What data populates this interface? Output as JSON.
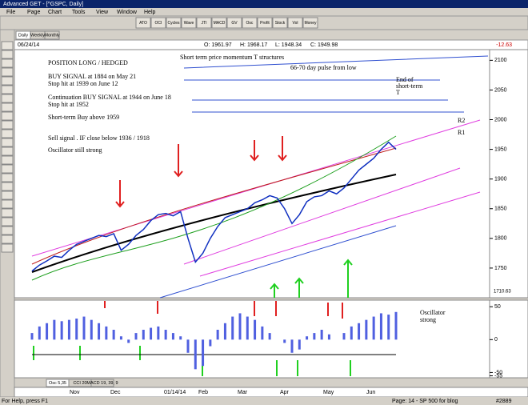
{
  "window_title": "Advanced GET - [^GSPC, Daily]",
  "menu": [
    "File",
    "Page",
    "Chart",
    "Tools",
    "View",
    "Window",
    "Help"
  ],
  "toolbar": [
    "ATO",
    "OCI",
    "Cycles",
    "Wave",
    "JTI",
    "MACD",
    "GV",
    "Osc",
    "Profit",
    "Stock",
    "Vol",
    "Money"
  ],
  "tabs": [
    "Daily",
    "Weekly",
    "Monthly"
  ],
  "info": {
    "date": "06/24/14",
    "open": "O: 1961.97",
    "high": "H: 1968.17",
    "low": "L: 1948.34",
    "close": "C: 1949.98",
    "change": "-12.63"
  },
  "annotations": [
    "Short term price momentum T structures",
    "POSITION LONG / HEDGED",
    "BUY SIGNAL at 1884 on May 21",
    "Stop hit at 1939 on June 12",
    "Continuation BUY SIGNAL at 1944 on June 18",
    "Stop hit at 1952",
    "Short-term Buy above 1959",
    "Sell signal . IF close below 1936 / 1918",
    "Oscillator still strong",
    "66-70 day pulse from low",
    "End of",
    "short-term",
    "T",
    "R2",
    "R1",
    "Oscillator",
    "strong"
  ],
  "price_chart": {
    "type": "line",
    "ylim": [
      1700,
      2118
    ],
    "yticks": [
      1750,
      1800,
      1850,
      1900,
      1950,
      2000,
      2050,
      2100
    ],
    "last_label": "1710.63",
    "values": [
      1745,
      1755,
      1762,
      1770,
      1768,
      1780,
      1790,
      1795,
      1800,
      1805,
      1803,
      1808,
      1780,
      1790,
      1805,
      1815,
      1830,
      1840,
      1842,
      1838,
      1845,
      1800,
      1760,
      1775,
      1800,
      1820,
      1835,
      1840,
      1845,
      1850,
      1860,
      1865,
      1872,
      1868,
      1850,
      1825,
      1840,
      1862,
      1870,
      1872,
      1880,
      1875,
      1885,
      1900,
      1915,
      1925,
      1935,
      1950,
      1962,
      1950
    ]
  },
  "oscillator": {
    "type": "bar",
    "ylim": [
      -58,
      60
    ],
    "yticks": [
      50,
      0,
      -50,
      -55
    ],
    "values": [
      10,
      20,
      25,
      30,
      28,
      30,
      32,
      35,
      30,
      25,
      20,
      15,
      5,
      -5,
      10,
      15,
      18,
      20,
      15,
      10,
      5,
      -20,
      -45,
      -40,
      -10,
      15,
      25,
      35,
      40,
      35,
      30,
      20,
      10,
      0,
      -5,
      -20,
      -15,
      5,
      10,
      15,
      8,
      0,
      10,
      20,
      25,
      30,
      35,
      40,
      38,
      42
    ]
  },
  "panel_tabs": [
    "Osc 5,35",
    "CCI 20",
    "MACD 19, 39, 9"
  ],
  "date_labels": [
    "Nov",
    "Dec",
    "01/14/14",
    "Feb",
    "Mar",
    "Apr",
    "May",
    "Jun"
  ],
  "status": {
    "help": "For Help, press F1",
    "page": "Page: 14 - SP 500 for blog",
    "code": "#2889"
  }
}
